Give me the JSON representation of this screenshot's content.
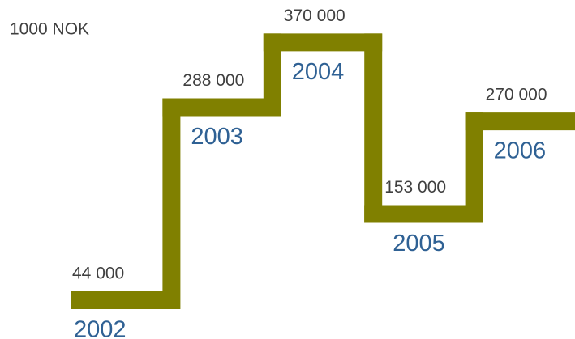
{
  "chart_data": {
    "type": "step",
    "y_label": "1000 NOK",
    "categories": [
      "2002",
      "2003",
      "2004",
      "2005",
      "2006"
    ],
    "values": [
      44000,
      288000,
      370000,
      153000,
      270000
    ],
    "value_labels": [
      "44 000",
      "288 000",
      "370 000",
      "153 000",
      "270 000"
    ],
    "color": "#808000",
    "ylim": [
      0,
      400000
    ]
  }
}
